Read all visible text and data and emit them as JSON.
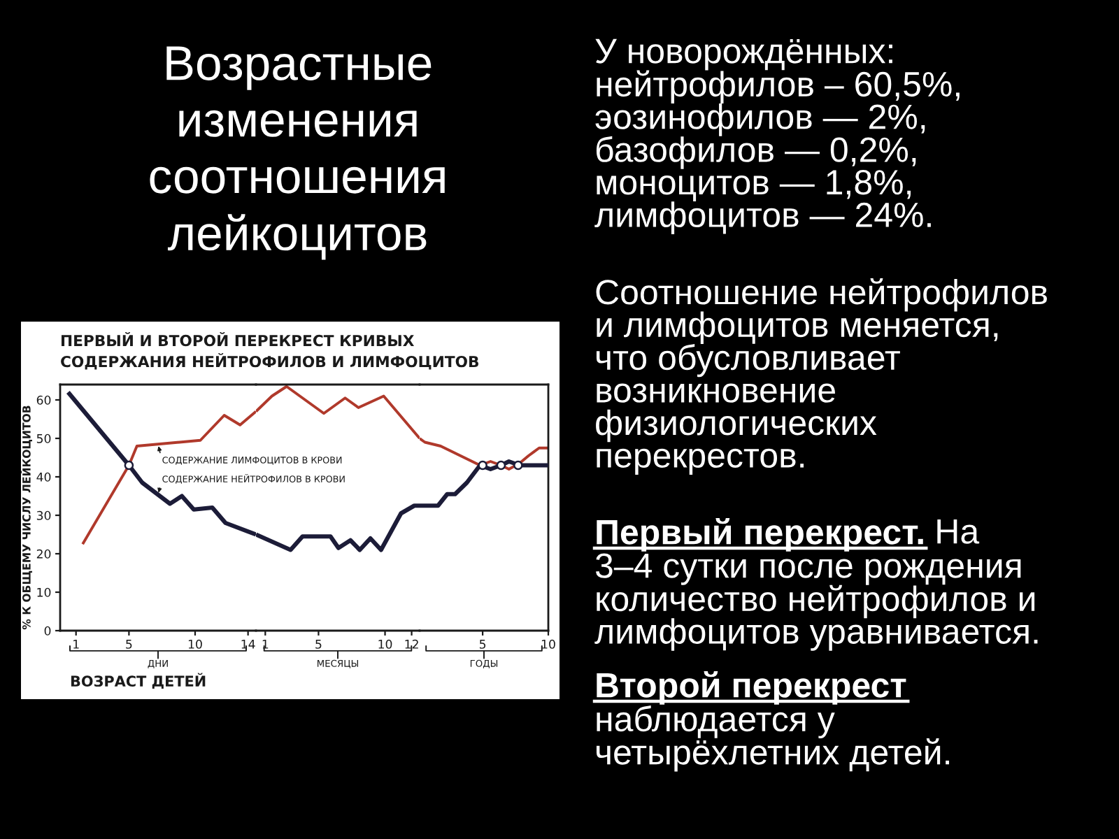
{
  "chart_data": [
    {
      "type": "line",
      "title": "Возрастные\nизменения\nсоотношения\nлейкоцитов",
      "subtitle": "ПЕРВЫЙ И ВТОРОЙ ПЕРЕКРЕСТ КРИВЫХ\nСОДЕРЖАНИЯ НЕЙТРОФИЛОВ И ЛИМФОЦИТОВ",
      "ylabel": "% К ОБЩЕМУ ЧИСЛУ ЛЕЙКОЦИТОВ",
      "xlabel": "ДНИ",
      "xlim": [
        -0.2,
        14.6
      ],
      "ylim": [
        0,
        64
      ],
      "xticks": [
        1,
        5,
        10,
        14
      ],
      "yticks": [
        0,
        10,
        20,
        30,
        40,
        50,
        60
      ],
      "series": [
        {
          "name": "СОДЕРЖАНИЕ ЛИМФОЦИТОВ В КРОВИ",
          "color": "#b0392b",
          "x": [
            1.5,
            5.0,
            5.6,
            10.4,
            12.2,
            13.4,
            14.6
          ],
          "values": [
            22.5,
            43,
            48,
            49.5,
            56,
            53.5,
            57
          ]
        },
        {
          "name": "СОДЕРЖАНИЕ НЕЙТРОФИЛОВ В КРОВИ",
          "color": "#1c1c38",
          "x": [
            0.4,
            5.0,
            6.0,
            8.1,
            9.0,
            9.9,
            11.3,
            12.3,
            14.6
          ],
          "values": [
            62,
            43,
            38.5,
            33,
            35,
            31.5,
            32,
            28,
            25
          ]
        },
        {
          "type": "scatter",
          "marker": "circle",
          "color": "#1c1c38",
          "x": [
            5.0
          ],
          "values": [
            43
          ]
        }
      ],
      "annotations": [
        "ВОЗРАСТ ДЕТЕЙ"
      ]
    },
    {
      "type": "line",
      "xlabel": "МЕСЯЦЫ",
      "xlim": [
        0.3,
        12.6
      ],
      "ylim": [
        0,
        64
      ],
      "xticks": [
        1,
        5,
        10,
        12
      ],
      "tick_labels": "x",
      "series": [
        {
          "color": "#b0392b",
          "x": [
            0.3,
            1.5,
            2.6,
            5.4,
            7.0,
            8.0,
            9.9,
            12.6
          ],
          "values": [
            57,
            61,
            63.5,
            56.5,
            60.5,
            58,
            61,
            50
          ]
        },
        {
          "color": "#1c1c38",
          "x": [
            0.3,
            2.9,
            3.8,
            5.9,
            6.5,
            7.4,
            8.1,
            8.9,
            9.7,
            11.2,
            12.2,
            12.6
          ],
          "values": [
            25,
            21,
            24.5,
            24.5,
            21.5,
            23.5,
            21,
            24,
            21,
            30.5,
            32.5,
            32.5
          ]
        }
      ]
    },
    {
      "type": "line",
      "xlabel": "ГОДЫ",
      "xlim": [
        0.2,
        10
      ],
      "ylim": [
        0,
        64
      ],
      "xticks": [
        5,
        10
      ],
      "tick_labels": "x",
      "series": [
        {
          "color": "#b0392b",
          "x": [
            0.2,
            0.6,
            1.8,
            4.8,
            5.6,
            6.4,
            7.0,
            7.8,
            8.5,
            9.3,
            10
          ],
          "values": [
            50,
            49,
            48,
            43,
            44,
            43,
            42,
            43.5,
            45.5,
            47.5,
            47.5
          ]
        },
        {
          "color": "#1c1c38",
          "x": [
            0.2,
            1.6,
            2.3,
            2.9,
            3.8,
            4.8,
            5.6,
            6.4,
            7.0,
            7.8,
            10
          ],
          "values": [
            32.5,
            32.5,
            35.5,
            35.5,
            38.5,
            43,
            42,
            43,
            44,
            43,
            43
          ]
        },
        {
          "type": "scatter",
          "marker": "circle",
          "color": "#1c1c38",
          "x": [
            5.0,
            6.4,
            7.7
          ],
          "values": [
            43,
            43,
            43
          ]
        }
      ]
    },
    {
      "type": "other",
      "annotations": [
        "У новорождённых:\nнейтрофилов – 60,5%,\nэозинофилов — 2%,\nбазофилов — 0,2%,\nмоноцитов — 1,8%,\nлимфоцитов — 24%.",
        "Соотношение нейтрофилов\nи лимфоцитов меняется,\nчто обусловливает\nвозникновение\nфизиологических\nперекрестов.",
        "Первый перекрест.",
        "На",
        "3–4 сутки после рождения\nколичество нейтрофилов и\nлимфоцитов уравнивается.",
        "Второй перекрест",
        "наблюдается у\nчетырёхлетних детей."
      ]
    }
  ]
}
